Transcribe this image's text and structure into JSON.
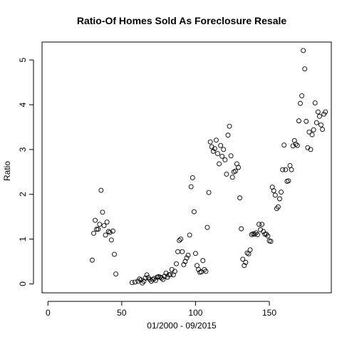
{
  "chart_data": {
    "type": "scatter",
    "title": "Ratio-Of Homes Sold As Foreclosure Resale",
    "xlabel": "01/2000 - 09/2015",
    "ylabel": "Ratio",
    "xlim": [
      -4,
      192
    ],
    "ylim": [
      -0.2,
      5.4
    ],
    "xticks": [
      0,
      50,
      100,
      150
    ],
    "yticks": [
      0,
      1,
      2,
      3,
      4,
      5
    ],
    "grid": false,
    "series": [
      {
        "marker": "open-circle",
        "color": "#000000",
        "points": [
          [
            30,
            0.53
          ],
          [
            31,
            1.13
          ],
          [
            32,
            1.42
          ],
          [
            33,
            1.22
          ],
          [
            34,
            1.22
          ],
          [
            35,
            1.33
          ],
          [
            36,
            2.09
          ],
          [
            37,
            1.6
          ],
          [
            38,
            1.3
          ],
          [
            39,
            1.09
          ],
          [
            40,
            1.38
          ],
          [
            41,
            1.17
          ],
          [
            42,
            1.15
          ],
          [
            43,
            0.98
          ],
          [
            44,
            1.18
          ],
          [
            45,
            0.66
          ],
          [
            46,
            0.22
          ],
          [
            57,
            0.03
          ],
          [
            59,
            0.04
          ],
          [
            61,
            0.06
          ],
          [
            62,
            0.11
          ],
          [
            63,
            0.09
          ],
          [
            64,
            0.02
          ],
          [
            65,
            0.06
          ],
          [
            66,
            0.13
          ],
          [
            67,
            0.2
          ],
          [
            68,
            0.14
          ],
          [
            69,
            0.1
          ],
          [
            70,
            0.06
          ],
          [
            71,
            0.1
          ],
          [
            72,
            0.12
          ],
          [
            73,
            0.08
          ],
          [
            74,
            0.15
          ],
          [
            75,
            0.16
          ],
          [
            76,
            0.15
          ],
          [
            77,
            0.13
          ],
          [
            78,
            0.1
          ],
          [
            79,
            0.17
          ],
          [
            80,
            0.24
          ],
          [
            81,
            0.15
          ],
          [
            82,
            0.2
          ],
          [
            83,
            0.21
          ],
          [
            84,
            0.32
          ],
          [
            85,
            0.2
          ],
          [
            86,
            0.28
          ],
          [
            87,
            0.45
          ],
          [
            88,
            0.72
          ],
          [
            89,
            0.97
          ],
          [
            90,
            1.0
          ],
          [
            91,
            0.72
          ],
          [
            92,
            0.43
          ],
          [
            93,
            0.5
          ],
          [
            94,
            0.58
          ],
          [
            95,
            0.64
          ],
          [
            96,
            1.09
          ],
          [
            97,
            2.17
          ],
          [
            98,
            2.37
          ],
          [
            99,
            1.61
          ],
          [
            100,
            0.68
          ],
          [
            101,
            0.41
          ],
          [
            102,
            0.32
          ],
          [
            103,
            0.26
          ],
          [
            104,
            0.27
          ],
          [
            105,
            0.52
          ],
          [
            106,
            0.32
          ],
          [
            107,
            0.28
          ],
          [
            108,
            1.26
          ],
          [
            109,
            2.04
          ],
          [
            110,
            3.17
          ],
          [
            111,
            3.06
          ],
          [
            112,
            2.96
          ],
          [
            113,
            3.02
          ],
          [
            114,
            3.21
          ],
          [
            115,
            2.91
          ],
          [
            116,
            2.68
          ],
          [
            117,
            3.09
          ],
          [
            118,
            2.85
          ],
          [
            119,
            3.0
          ],
          [
            120,
            2.77
          ],
          [
            121,
            2.45
          ],
          [
            122,
            3.32
          ],
          [
            123,
            3.52
          ],
          [
            124,
            2.86
          ],
          [
            125,
            2.38
          ],
          [
            126,
            2.5
          ],
          [
            127,
            2.52
          ],
          [
            128,
            2.68
          ],
          [
            129,
            2.6
          ],
          [
            130,
            1.92
          ],
          [
            131,
            1.23
          ],
          [
            132,
            0.55
          ],
          [
            133,
            0.41
          ],
          [
            134,
            0.48
          ],
          [
            135,
            0.69
          ],
          [
            136,
            0.67
          ],
          [
            137,
            0.76
          ],
          [
            138,
            1.1
          ],
          [
            139,
            1.12
          ],
          [
            140,
            1.11
          ],
          [
            141,
            1.14
          ],
          [
            142,
            1.1
          ],
          [
            143,
            1.33
          ],
          [
            144,
            1.21
          ],
          [
            145,
            1.33
          ],
          [
            146,
            1.17
          ],
          [
            147,
            1.11
          ],
          [
            148,
            1.11
          ],
          [
            149,
            1.07
          ],
          [
            150,
            0.96
          ],
          [
            151,
            0.95
          ],
          [
            152,
            2.16
          ],
          [
            153,
            2.08
          ],
          [
            154,
            1.98
          ],
          [
            155,
            1.68
          ],
          [
            156,
            1.72
          ],
          [
            157,
            1.9
          ],
          [
            158,
            2.05
          ],
          [
            159,
            2.55
          ],
          [
            160,
            3.1
          ],
          [
            161,
            2.55
          ],
          [
            162,
            2.29
          ],
          [
            163,
            2.3
          ],
          [
            164,
            2.64
          ],
          [
            165,
            2.55
          ],
          [
            166,
            3.08
          ],
          [
            167,
            3.2
          ],
          [
            168,
            3.12
          ],
          [
            169,
            3.09
          ],
          [
            170,
            3.64
          ],
          [
            171,
            4.03
          ],
          [
            172,
            4.2
          ],
          [
            173,
            5.21
          ],
          [
            174,
            4.8
          ],
          [
            175,
            3.63
          ],
          [
            176,
            3.04
          ],
          [
            177,
            3.39
          ],
          [
            178,
            3.0
          ],
          [
            179,
            3.33
          ],
          [
            180,
            3.44
          ],
          [
            181,
            4.04
          ],
          [
            182,
            3.6
          ],
          [
            183,
            3.84
          ],
          [
            184,
            3.74
          ],
          [
            185,
            3.55
          ],
          [
            186,
            3.45
          ],
          [
            187,
            3.79
          ],
          [
            188,
            3.84
          ]
        ]
      }
    ]
  }
}
